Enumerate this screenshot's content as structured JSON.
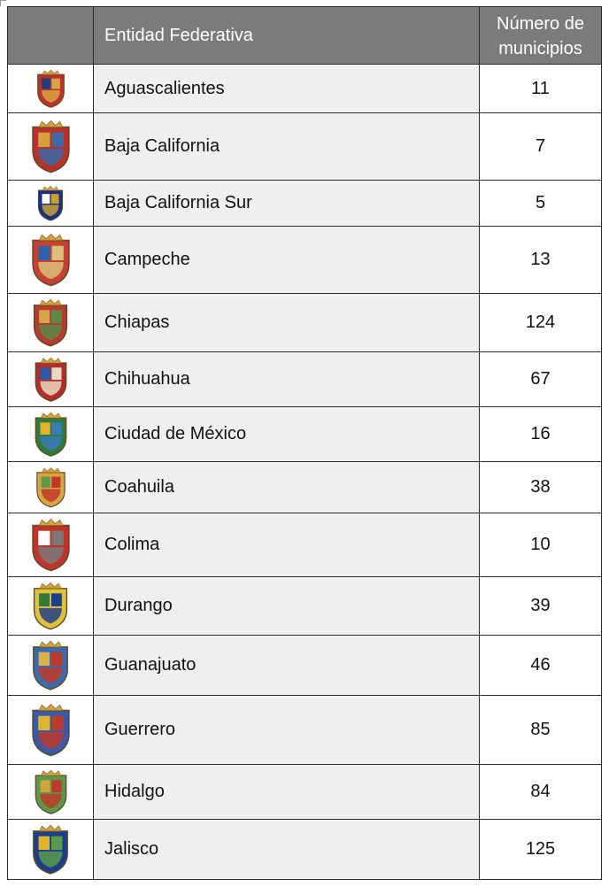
{
  "table": {
    "headers": {
      "entity": "Entidad Federativa",
      "count_line1": "Número de",
      "count_line2": "municipios"
    },
    "rows": [
      {
        "name": "Aguascalientes",
        "count": "11",
        "crest": {
          "icon": "aguascalientes-crest-icon",
          "colors": [
            "#b8322a",
            "#1d3f8a",
            "#d9a441"
          ]
        }
      },
      {
        "name": "Baja California",
        "count": "7",
        "crest": {
          "icon": "baja-california-crest-icon",
          "colors": [
            "#b8322a",
            "#d4a23a",
            "#3a6aa8"
          ]
        }
      },
      {
        "name": "Baja California Sur",
        "count": "5",
        "crest": {
          "icon": "baja-california-sur-crest-icon",
          "colors": [
            "#1b2f86",
            "#ffffff",
            "#c9a12e"
          ]
        }
      },
      {
        "name": "Campeche",
        "count": "13",
        "crest": {
          "icon": "campeche-crest-icon",
          "colors": [
            "#c8402f",
            "#2c62ab",
            "#d8c07a"
          ]
        }
      },
      {
        "name": "Chiapas",
        "count": "124",
        "crest": {
          "icon": "chiapas-crest-icon",
          "colors": [
            "#b73a2c",
            "#d7a24a",
            "#5a8a4a"
          ]
        }
      },
      {
        "name": "Chihuahua",
        "count": "67",
        "crest": {
          "icon": "chihuahua-crest-icon",
          "colors": [
            "#b52b2b",
            "#2b5aa6",
            "#e6d9c0"
          ]
        }
      },
      {
        "name": "Ciudad de México",
        "count": "16",
        "crest": {
          "icon": "ciudad-de-mexico-crest-icon",
          "colors": [
            "#2f7a3a",
            "#e0b52c",
            "#3a7ab8"
          ]
        }
      },
      {
        "name": "Coahuila",
        "count": "38",
        "crest": {
          "icon": "coahuila-crest-icon",
          "colors": [
            "#d9a441",
            "#5a9a4a",
            "#c03a2a"
          ]
        }
      },
      {
        "name": "Colima",
        "count": "10",
        "crest": {
          "icon": "colima-crest-icon",
          "colors": [
            "#c0332a",
            "#ffffff",
            "#7a7a7a"
          ]
        }
      },
      {
        "name": "Durango",
        "count": "39",
        "crest": {
          "icon": "durango-crest-icon",
          "colors": [
            "#e0c23a",
            "#2f7a3a",
            "#1d3f8a"
          ]
        }
      },
      {
        "name": "Guanajuato",
        "count": "46",
        "crest": {
          "icon": "guanajuato-crest-icon",
          "colors": [
            "#3a6ab0",
            "#d9b24a",
            "#c03a2a"
          ]
        }
      },
      {
        "name": "Guerrero",
        "count": "85",
        "crest": {
          "icon": "guerrero-crest-icon",
          "colors": [
            "#3a5aa8",
            "#e0b52c",
            "#c03a2a"
          ]
        }
      },
      {
        "name": "Hidalgo",
        "count": "84",
        "crest": {
          "icon": "hidalgo-crest-icon",
          "colors": [
            "#5a9a4a",
            "#d4a23a",
            "#c03a2a"
          ]
        }
      },
      {
        "name": "Jalisco",
        "count": "125",
        "crest": {
          "icon": "jalisco-crest-icon",
          "colors": [
            "#1d3f8a",
            "#e0b52c",
            "#5a9a4a"
          ]
        }
      }
    ]
  }
}
